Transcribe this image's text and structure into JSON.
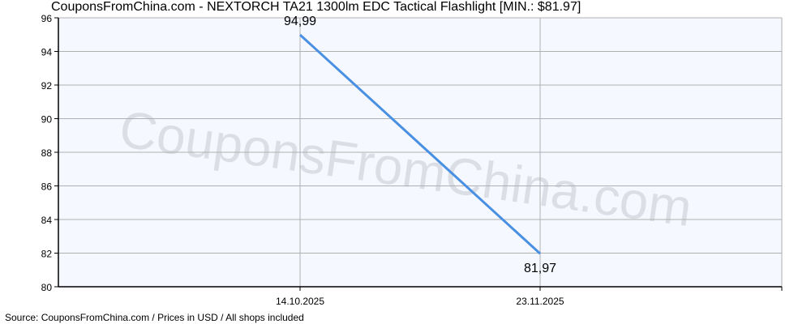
{
  "title": "CouponsFromChina.com - NEXTORCH TA21 1300lm EDC Tactical Flashlight [MIN.: $81.97]",
  "source": "Source: CouponsFromChina.com / Prices in USD / All shops included",
  "watermark": "CouponsFromChina.com",
  "colors": {
    "line": "#4a90e2",
    "plot_bg": "#f5f8ff",
    "grid": "#b0b0b0"
  },
  "chart_data": {
    "type": "line",
    "title": "CouponsFromChina.com - NEXTORCH TA21 1300lm EDC Tactical Flashlight [MIN.: $81.97]",
    "x": [
      "14.10.2025",
      "23.11.2025"
    ],
    "series": [
      {
        "values": [
          94.99,
          81.97
        ],
        "labels": [
          "94,99",
          "81,97"
        ]
      }
    ],
    "ylim": [
      80,
      96
    ],
    "yticks": [
      80,
      82,
      84,
      86,
      88,
      90,
      92,
      94,
      96
    ],
    "xticks": [
      "14.10.2025",
      "23.11.2025"
    ],
    "grid": true
  }
}
